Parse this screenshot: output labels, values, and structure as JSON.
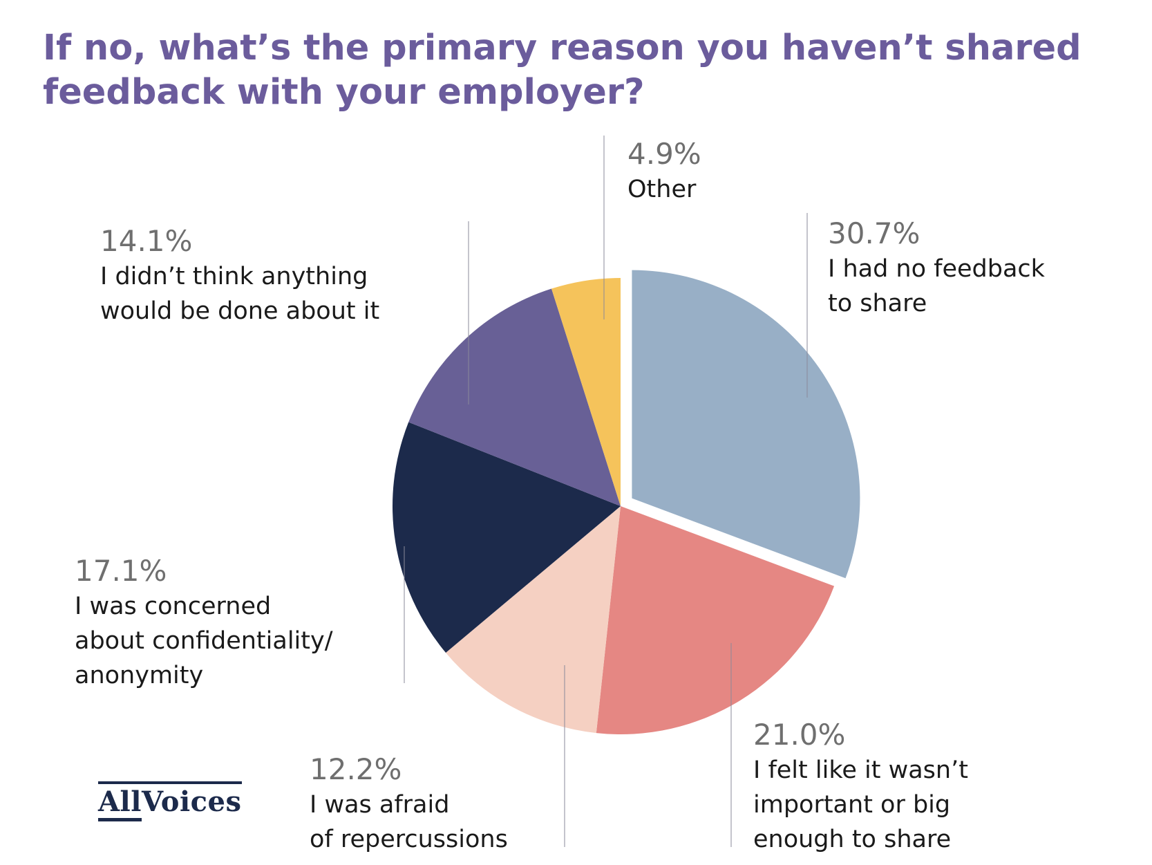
{
  "chart_data": {
    "type": "pie",
    "title": "If no, what’s the primary reason you haven’t shared feedback with your employer?",
    "slices": [
      {
        "pct": "30.7%",
        "value": 30.7,
        "label": [
          "I had no feedback",
          "to share"
        ],
        "color": "#98afc6",
        "exploded": true
      },
      {
        "pct": "21.0%",
        "value": 21.0,
        "label": [
          "I felt like it wasn’t",
          "important or big",
          "enough to share"
        ],
        "color": "#e58783"
      },
      {
        "pct": "12.2%",
        "value": 12.2,
        "label": [
          "I was afraid",
          "of repercussions"
        ],
        "color": "#f5d0c2"
      },
      {
        "pct": "17.1%",
        "value": 17.1,
        "label": [
          "I was concerned",
          "about confidentiality/",
          "anonymity"
        ],
        "color": "#1c2a4b"
      },
      {
        "pct": "14.1%",
        "value": 14.1,
        "label": [
          "I didn’t think anything",
          "would be done about it"
        ],
        "color": "#686096"
      },
      {
        "pct": "4.9%",
        "value": 4.9,
        "label": [
          "Other"
        ],
        "color": "#f5c35b"
      }
    ]
  },
  "logo": {
    "part1": "All",
    "part2": "Voices"
  }
}
